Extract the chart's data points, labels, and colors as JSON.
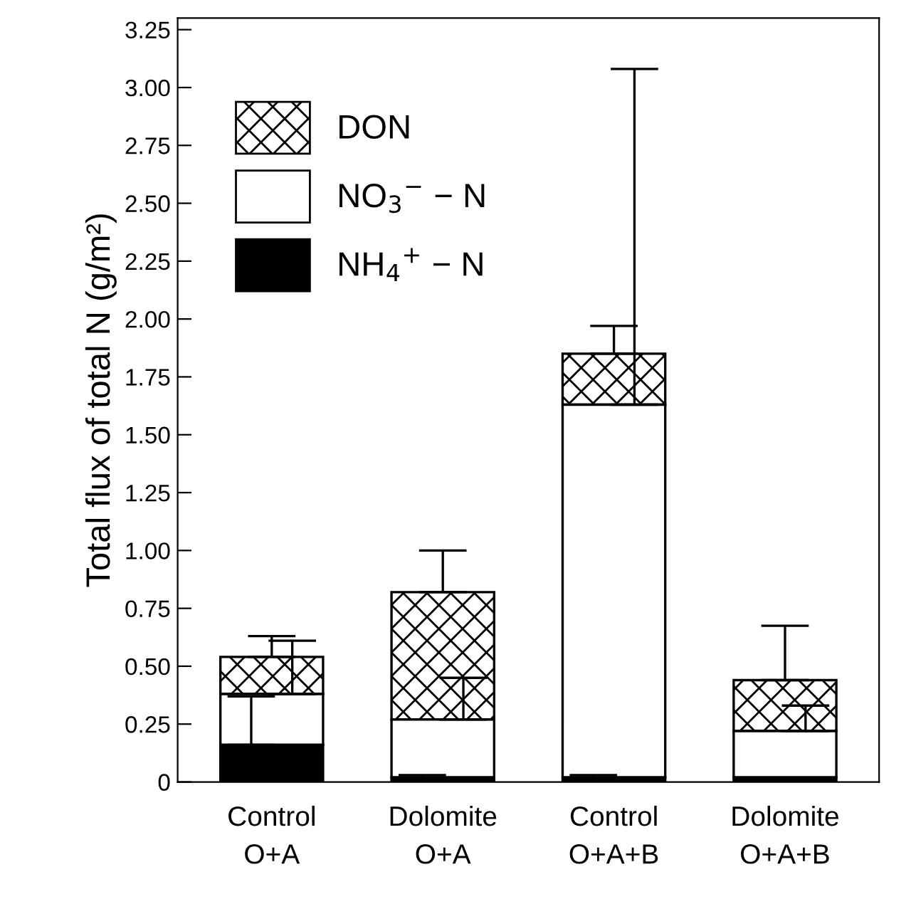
{
  "chart_data": {
    "type": "bar",
    "stacked": true,
    "ylabel": "Total flux of total N (g/m²)",
    "categories": [
      "Control\nO+A",
      "Dolomite\nO+A",
      "Control\nO+A+B",
      "Dolomite\nO+A+B"
    ],
    "series": [
      {
        "name": "NH$_{4}$$^{+}$ − N",
        "color": "#000000",
        "values": [
          0.16,
          0.02,
          0.02,
          0.02
        ],
        "errors": [
          [
            0.16,
            0.37
          ],
          [
            0.02,
            0.03
          ],
          [
            0.02,
            0.03
          ],
          null
        ]
      },
      {
        "name": "NO$_{3}$$^{−}$ − N",
        "color": "#ffffff",
        "values": [
          0.22,
          0.25,
          1.61,
          0.2
        ],
        "errors": [
          [
            0.38,
            0.61
          ],
          [
            0.27,
            0.45
          ],
          [
            1.63,
            3.08
          ],
          [
            0.22,
            0.33
          ]
        ]
      },
      {
        "name": "DON",
        "color": "#000000",
        "values": [
          0.16,
          0.55,
          0.22,
          0.22
        ],
        "errors": [
          [
            0.54,
            0.63
          ],
          [
            0.82,
            1.0
          ],
          [
            1.85,
            1.97
          ],
          [
            0.44,
            0.675
          ]
        ]
      }
    ],
    "ylim": [
      0,
      3.3
    ],
    "yticks": [
      0,
      {
        "value": 0.25,
        "label": "0.25"
      },
      {
        "value": 0.5,
        "label": "0.50"
      },
      {
        "value": 0.75,
        "label": "0.75"
      },
      {
        "value": 1.0,
        "label": "1.00"
      },
      {
        "value": 1.25,
        "label": "1.25"
      },
      {
        "value": 1.5,
        "label": "1.50"
      },
      {
        "value": 1.75,
        "label": "1.75"
      },
      {
        "value": 2.0,
        "label": "2.00"
      },
      {
        "value": 2.25,
        "label": "2.25"
      },
      {
        "value": 2.5,
        "label": "2.50"
      },
      {
        "value": 2.75,
        "label": "2.75"
      },
      {
        "value": 3.0,
        "label": "3.00"
      },
      {
        "value": 3.25,
        "label": "3.25"
      }
    ],
    "grid": false,
    "legend": "top left"
  }
}
